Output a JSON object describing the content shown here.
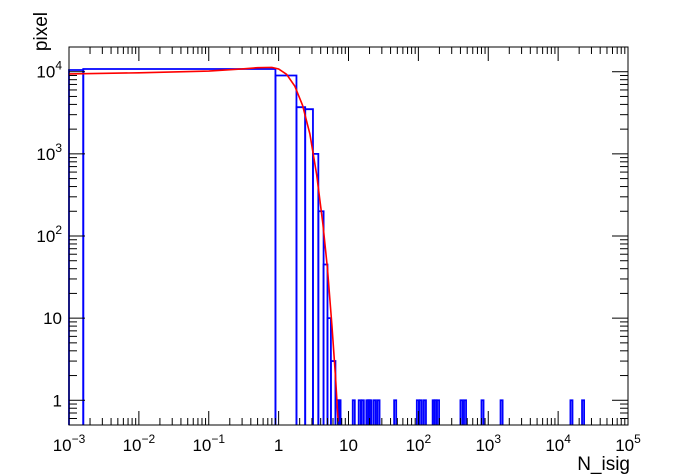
{
  "chart_data": {
    "type": "line",
    "title": "",
    "xlabel": "N_isig",
    "ylabel": "pixel",
    "xscale": "log",
    "yscale": "log",
    "xlim": [
      0.001,
      100000
    ],
    "ylim": [
      0.5,
      20000
    ],
    "grid": false,
    "legend": "none",
    "x_tick_labels": [
      {
        "value": 0.001,
        "base": "10",
        "exp": "−3"
      },
      {
        "value": 0.01,
        "base": "10",
        "exp": "−2"
      },
      {
        "value": 0.1,
        "base": "10",
        "exp": "−1"
      },
      {
        "value": 1,
        "base": "1",
        "exp": ""
      },
      {
        "value": 10,
        "base": "10",
        "exp": ""
      },
      {
        "value": 100,
        "base": "10",
        "exp": "2"
      },
      {
        "value": 1000,
        "base": "10",
        "exp": "3"
      },
      {
        "value": 10000,
        "base": "10",
        "exp": "4"
      },
      {
        "value": 100000,
        "base": "10",
        "exp": "5"
      }
    ],
    "y_tick_labels": [
      {
        "value": 1,
        "base": "1",
        "exp": ""
      },
      {
        "value": 10,
        "base": "10",
        "exp": ""
      },
      {
        "value": 100,
        "base": "10",
        "exp": "2"
      },
      {
        "value": 1000,
        "base": "10",
        "exp": "3"
      },
      {
        "value": 10000,
        "base": "10",
        "exp": "4"
      }
    ],
    "series": [
      {
        "type": "histogram",
        "color": "#0000ff",
        "bins": [
          {
            "x0": 0.001,
            "x1": 0.0016,
            "y": 10500
          },
          {
            "x0": 0.0016,
            "x1": 0.9,
            "y": 10800
          },
          {
            "x0": 0.9,
            "x1": 1.8,
            "y": 9000
          },
          {
            "x0": 1.8,
            "x1": 2.4,
            "y": 3700
          },
          {
            "x0": 2.4,
            "x1": 3.1,
            "y": 3500
          },
          {
            "x0": 3.1,
            "x1": 3.7,
            "y": 1000
          },
          {
            "x0": 3.7,
            "x1": 4.4,
            "y": 200
          },
          {
            "x0": 4.4,
            "x1": 5.0,
            "y": 45
          },
          {
            "x0": 5.0,
            "x1": 5.6,
            "y": 10
          },
          {
            "x0": 5.6,
            "x1": 6.5,
            "y": 3
          },
          {
            "x0": 6.5,
            "x1": 7.5,
            "y": 1
          }
        ],
        "spikes": [
          7.2,
          11.5,
          14,
          15.5,
          18,
          19,
          20,
          23,
          26,
          45,
          95,
          105,
          120,
          160,
          170,
          185,
          400,
          450,
          800,
          1500,
          15000,
          22000
        ]
      },
      {
        "type": "line",
        "color": "#ff0000",
        "x": [
          0.001,
          0.01,
          0.1,
          0.3,
          0.5,
          0.8,
          1,
          1.3,
          1.7,
          2.2,
          2.8,
          3.5,
          4.3,
          5.0,
          5.8,
          6.5,
          7.1
        ],
        "y": [
          9400,
          9700,
          10200,
          10800,
          11200,
          11300,
          10800,
          9300,
          6700,
          3900,
          1750,
          560,
          140,
          40,
          8,
          2,
          0.55
        ]
      }
    ]
  }
}
